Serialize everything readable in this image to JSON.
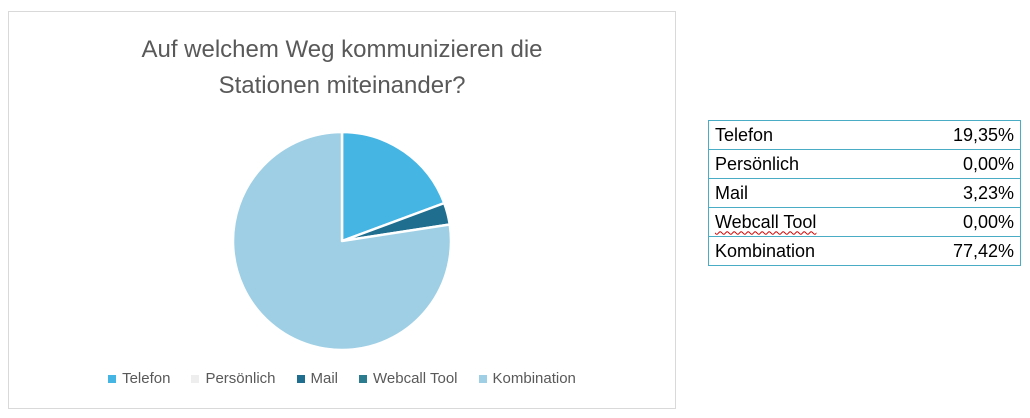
{
  "chart_data": {
    "type": "pie",
    "title_lines": [
      "Auf welchem Weg kommunizieren die",
      "Stationen miteinander?"
    ],
    "categories": [
      "Telefon",
      "Persönlich",
      "Mail",
      "Webcall Tool",
      "Kombination"
    ],
    "values": [
      19.35,
      0.0,
      3.23,
      0.0,
      77.42
    ],
    "colors": [
      "#45b5e3",
      "#eeeeee",
      "#1f6e8f",
      "#2a7c8e",
      "#9ecfe5"
    ],
    "legend_position": "bottom"
  },
  "table": {
    "rows": [
      {
        "label": "Telefon",
        "value": "19,35%"
      },
      {
        "label": "Persönlich",
        "value": "0,00%"
      },
      {
        "label": "Mail",
        "value": "3,23%"
      },
      {
        "label": "Webcall Tool",
        "value": "0,00%"
      },
      {
        "label": "Kombination",
        "value": "77,42%"
      }
    ]
  }
}
